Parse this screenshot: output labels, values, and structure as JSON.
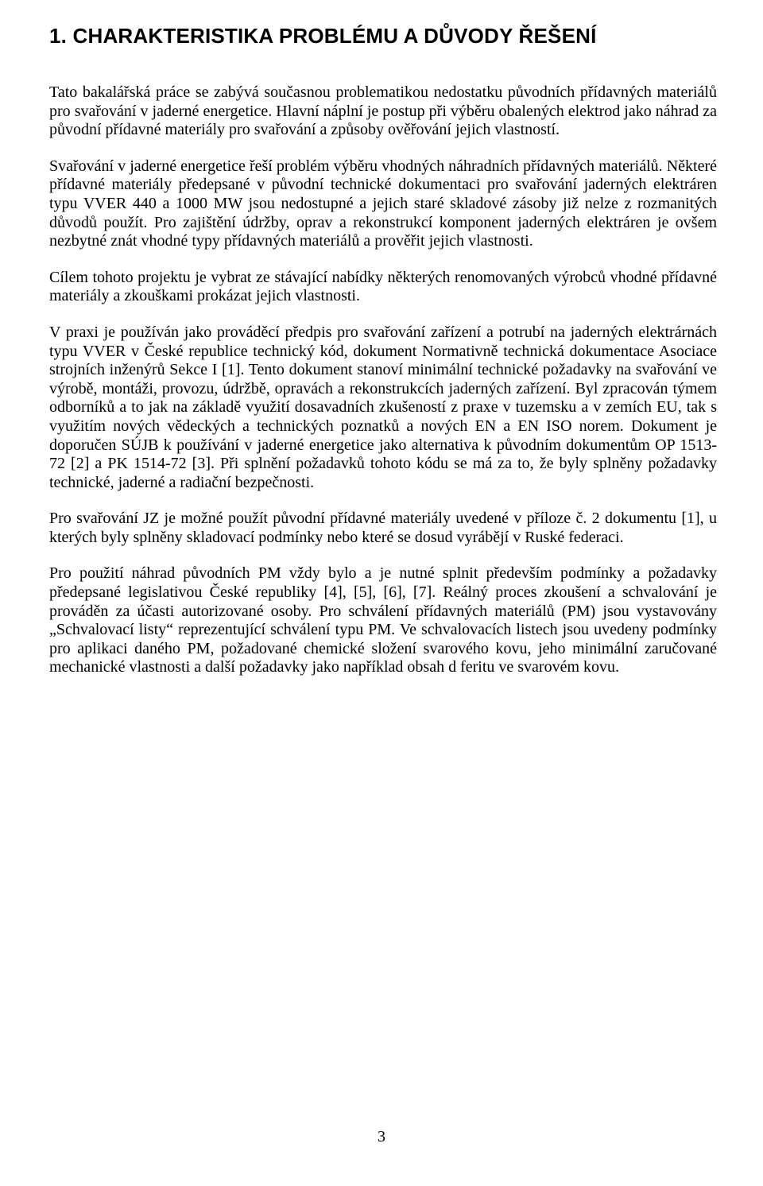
{
  "heading": "1. CHARAKTERISTIKA PROBLÉMU A DŮVODY ŘEŠENÍ",
  "paragraphs": {
    "p1": "Tato bakalářská práce se zabývá současnou problematikou nedostatku původních přídavných materiálů pro svařování v jaderné energetice. Hlavní náplní je postup při výběru obalených elektrod jako náhrad za původní přídavné materiály pro svařování a způsoby ověřování jejich vlastností.",
    "p2": "Svařování v jaderné energetice řeší problém výběru vhodných náhradních přídavných materiálů. Některé přídavné materiály předepsané v původní technické dokumentaci pro svařování jaderných elektráren typu VVER 440 a 1000 MW jsou nedostupné a jejich staré skladové zásoby již nelze z rozmanitých důvodů použít. Pro zajištění údržby, oprav a rekonstrukcí komponent jaderných elektráren je ovšem nezbytné znát vhodné typy přídavných materiálů a prověřit jejich vlastnosti.",
    "p3": "Cílem tohoto projektu je vybrat ze stávající nabídky některých renomovaných výrobců vhodné přídavné materiály a zkouškami prokázat jejich vlastnosti.",
    "p4": "V praxi je používán jako prováděcí předpis pro svařování zařízení a potrubí na jaderných elektrárnách typu VVER v České republice  technický kód, dokument Normativně technická dokumentace Asociace strojních inženýrů Sekce I [1]. Tento dokument stanoví minimální technické požadavky na svařování ve výrobě, montáži, provozu, údržbě, opravách a rekonstrukcích jaderných zařízení. Byl zpracován týmem odborníků a to jak na základě využití dosavadních zkušeností z praxe v tuzemsku a v zemích EU, tak s využitím nových vědeckých a technických poznatků a nových EN a EN ISO norem. Dokument je doporučen SÚJB k používání v jaderné energetice jako alternativa k původním dokumentům OP 1513-72 [2] a PK 1514-72 [3]. Při splnění požadavků tohoto kódu se má za to, že byly splněny požadavky technické, jaderné a radiační bezpečnosti.",
    "p5": "Pro svařování JZ je možné použít původní přídavné materiály uvedené v příloze č. 2 dokumentu [1], u kterých byly splněny skladovací podmínky nebo které se dosud vyrábějí v Ruské federaci.",
    "p6": "Pro použití náhrad původních PM vždy bylo a je nutné splnit především podmínky a požadavky předepsané legislativou  České republiky [4], [5], [6], [7]. Reálný proces zkoušení a schvalování je prováděn za účasti autorizované osoby. Pro schválení přídavných materiálů (PM) jsou vystavovány „Schvalovací listy“ reprezentující schválení typu PM. Ve schvalovacích listech jsou uvedeny podmínky pro aplikaci daného PM, požadované chemické složení svarového kovu, jeho minimální zaručované mechanické vlastnosti a další požadavky jako například obsah d feritu ve svarovém kovu."
  },
  "page_number": "3"
}
